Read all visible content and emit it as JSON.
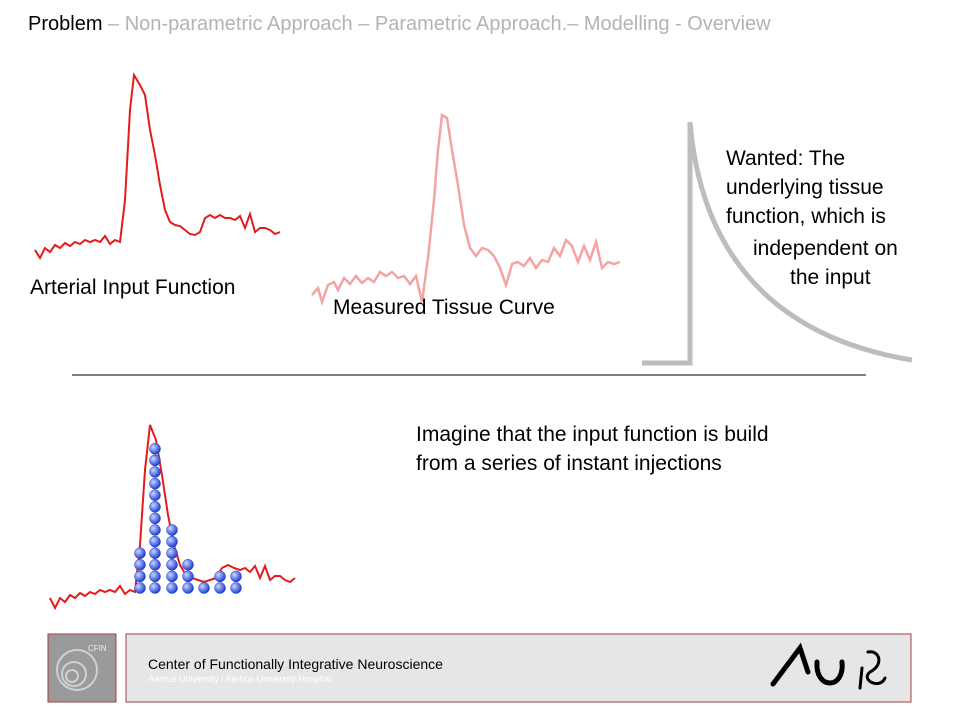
{
  "header": {
    "active": "Problem",
    "rest": "– Non-parametric Approach – Parametric Approach.– Modelling - Overview"
  },
  "panels": {
    "arterial_label": "Arterial Input Function",
    "tissue_label": "Measured Tissue Curve",
    "wanted_lines": [
      "Wanted: The",
      "underlying tissue",
      "function, which is",
      "independent on",
      "the input"
    ]
  },
  "imagine_lines": [
    "Imagine that the input function is build",
    "from a series of instant injections"
  ],
  "footer": {
    "logo_text": "CFIN",
    "title": "Center of Functionally Integrative Neuroscience",
    "subtitle": "Aarhus University / Aarhus University Hospital"
  }
}
